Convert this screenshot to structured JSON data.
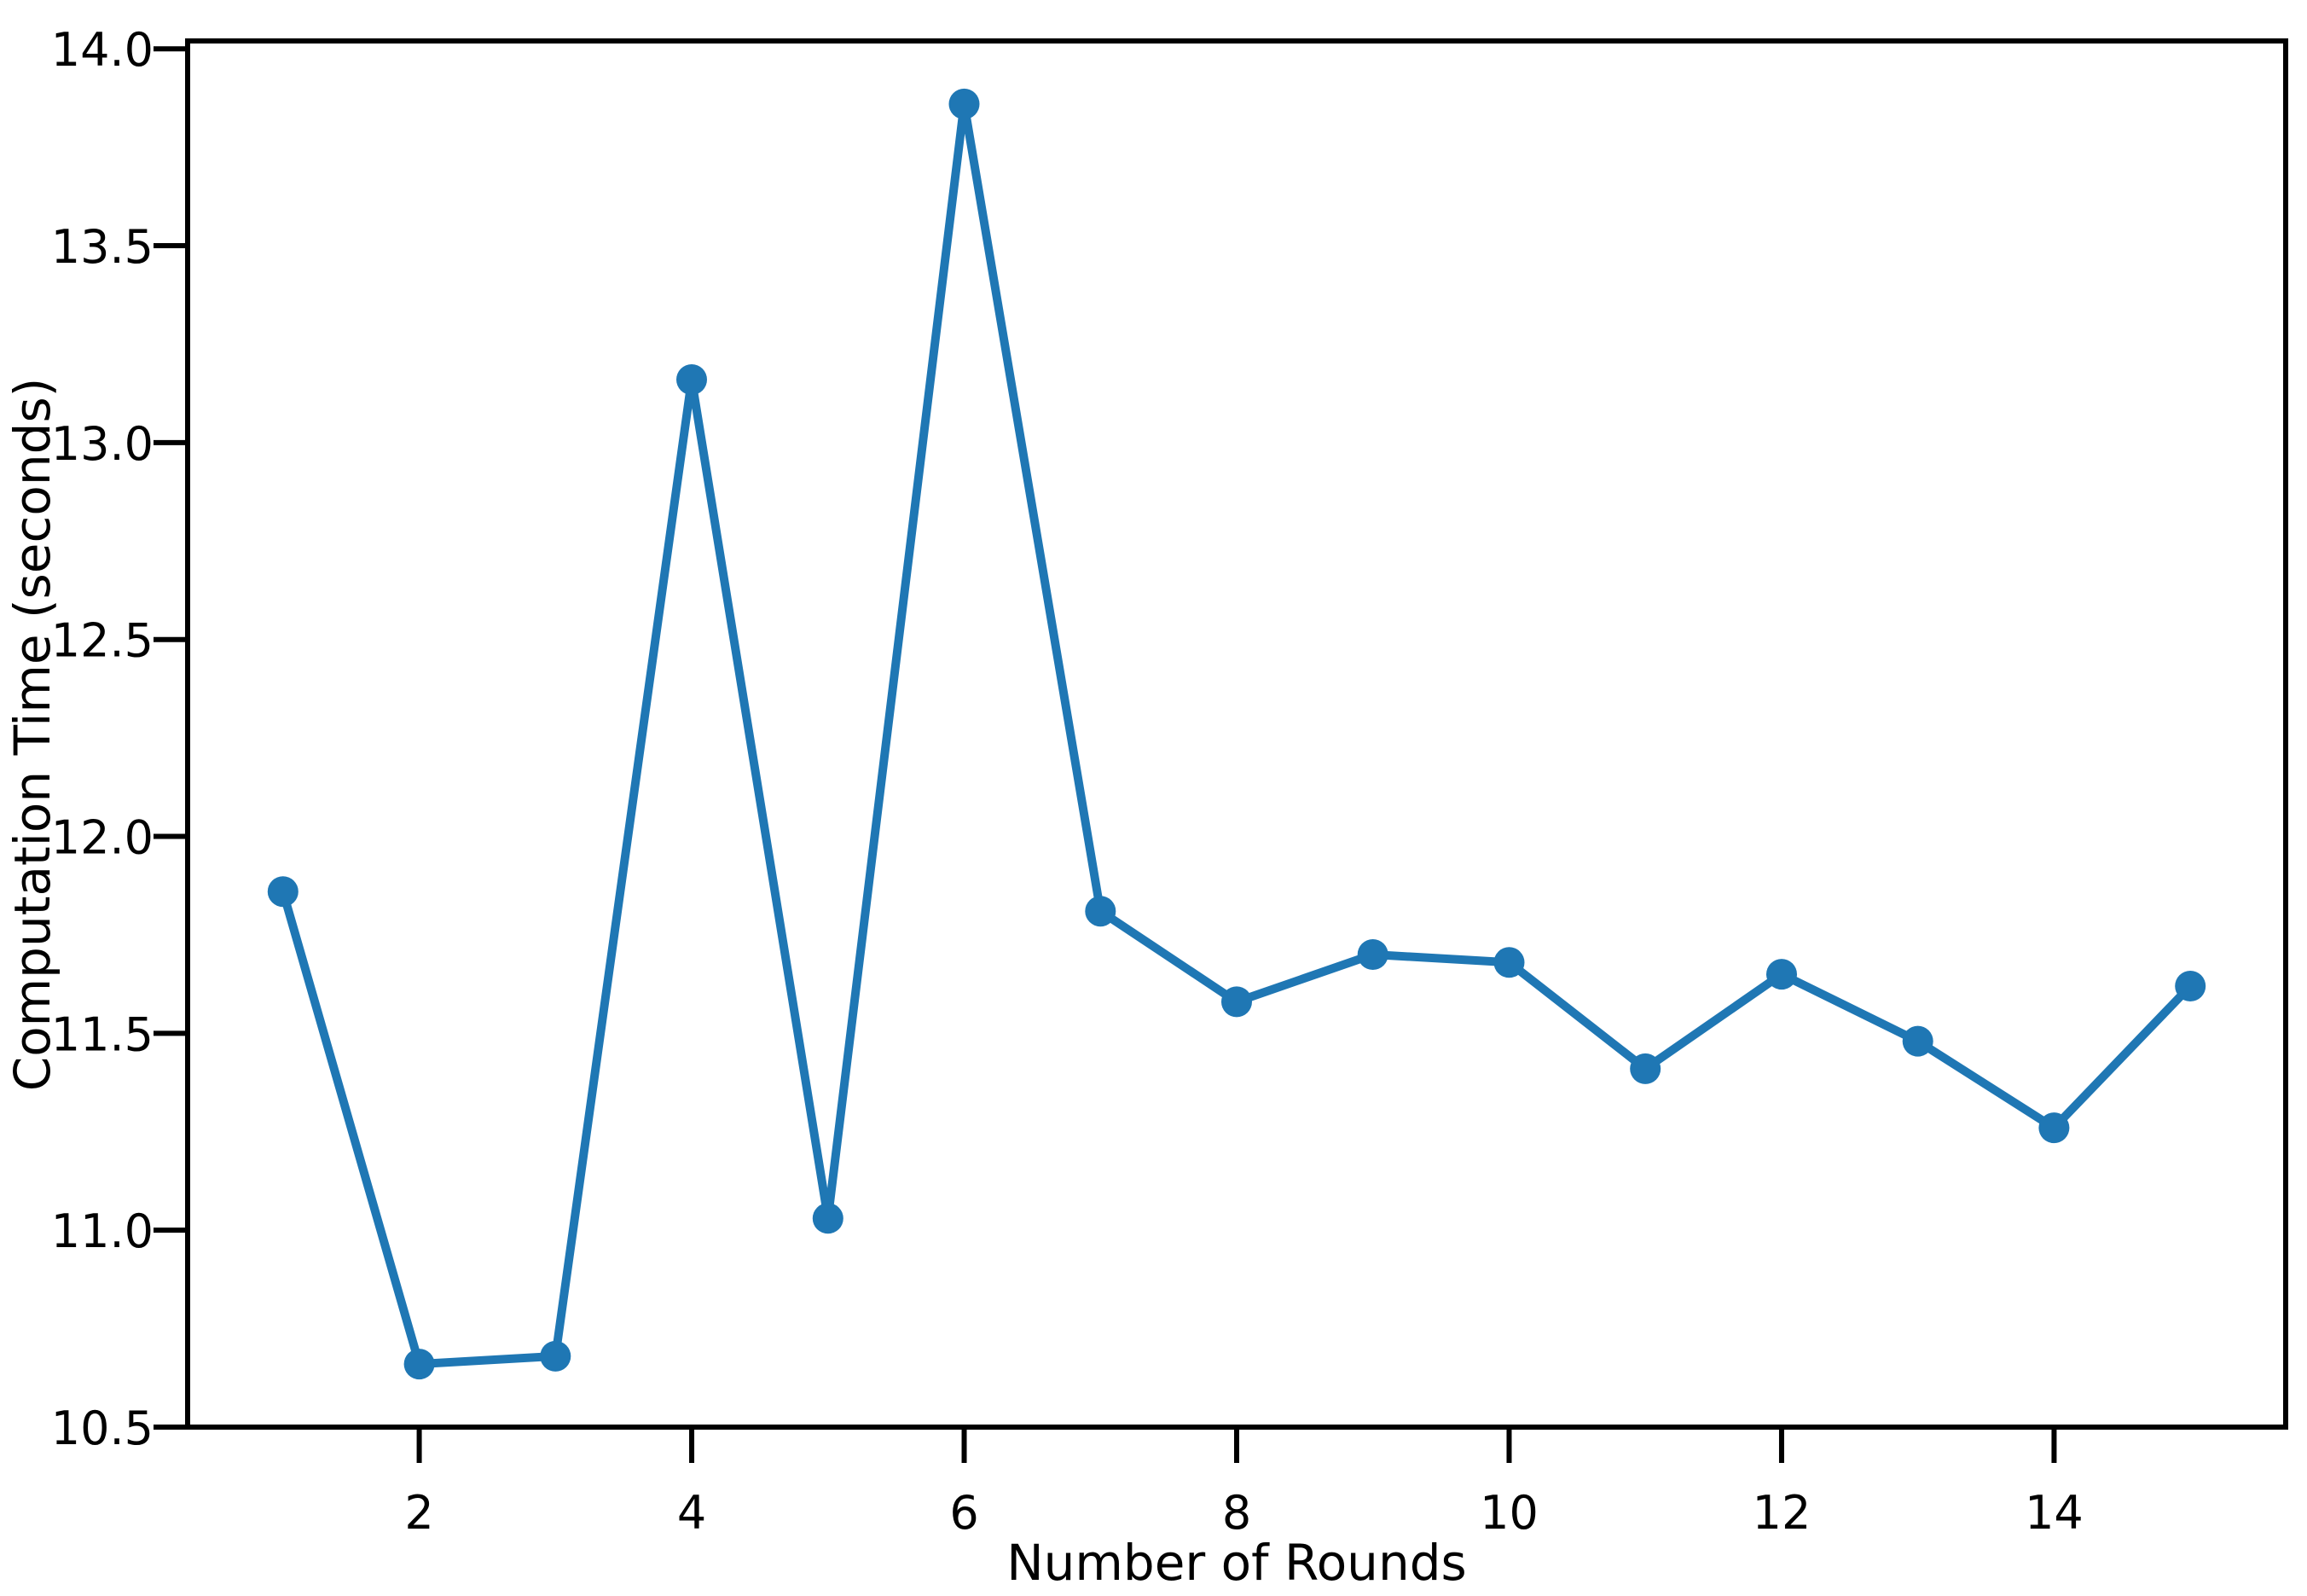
{
  "figure": {
    "background_color": "#ffffff",
    "text_color": "#000000",
    "axis_color": "#000000"
  },
  "chart_data": {
    "type": "line",
    "xlabel": "Number of Rounds",
    "ylabel": "Computation Time (seconds)",
    "x": [
      1,
      2,
      3,
      4,
      5,
      6,
      7,
      8,
      9,
      10,
      11,
      12,
      13,
      14,
      15
    ],
    "y": [
      11.86,
      10.66,
      10.68,
      13.16,
      11.03,
      13.86,
      11.81,
      11.58,
      11.7,
      11.68,
      11.41,
      11.65,
      11.48,
      11.26,
      11.62
    ],
    "xticks": [
      2,
      4,
      6,
      8,
      10,
      12,
      14
    ],
    "ytick_labels": [
      "10.5",
      "11.0",
      "11.5",
      "12.0",
      "12.5",
      "13.0",
      "13.5",
      "14.0"
    ],
    "xlim": [
      0.3,
      15.7
    ],
    "ylim": [
      10.5,
      14.02
    ],
    "line_color": "#1f77b4",
    "marker": "circle",
    "marker_color": "#1f77b4",
    "grid": false,
    "legend": "none"
  }
}
